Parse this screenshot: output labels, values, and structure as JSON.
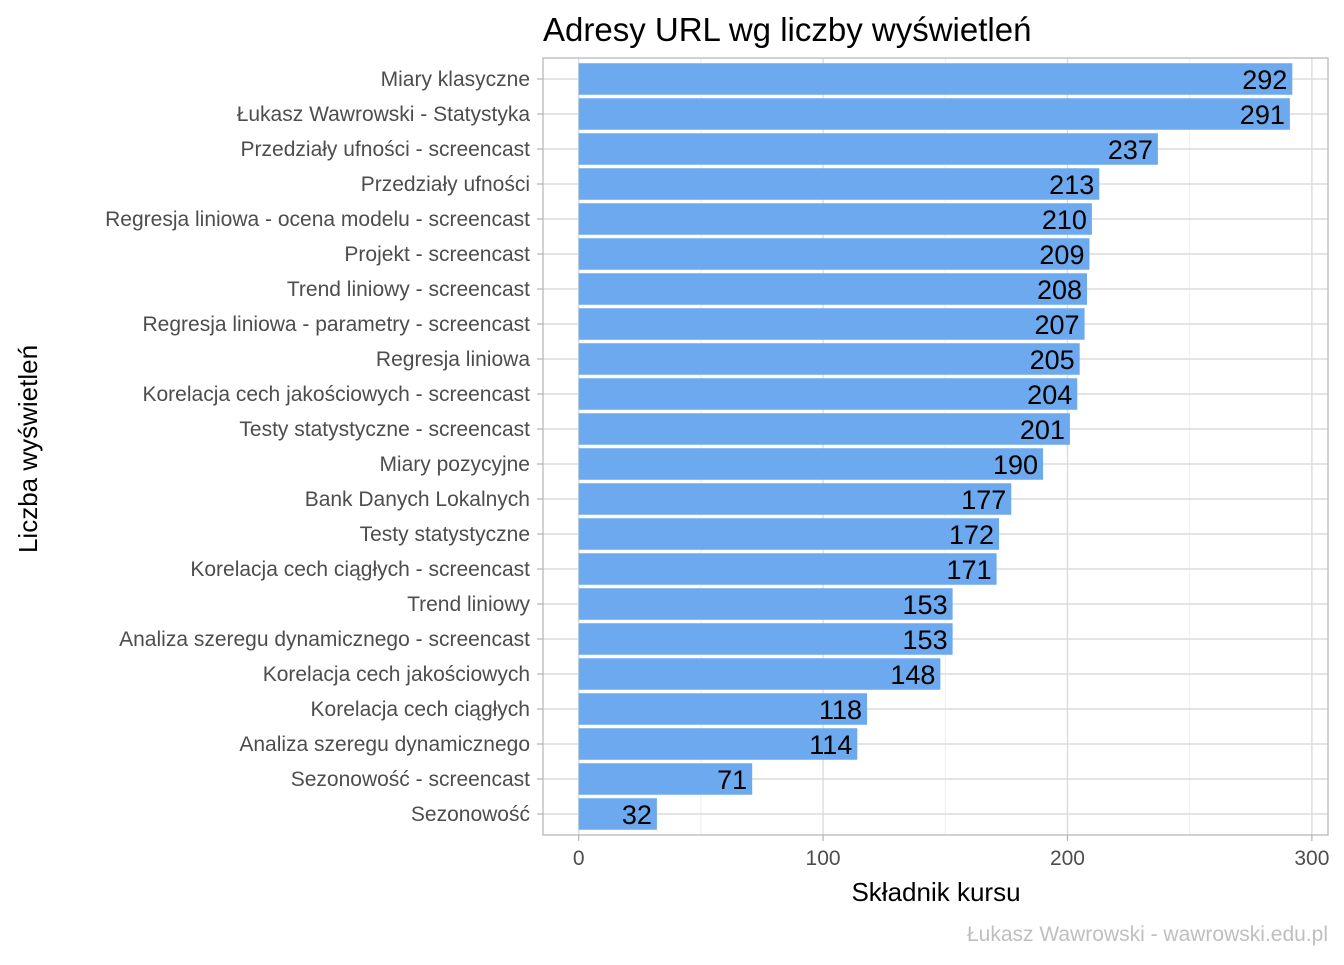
{
  "chart_data": {
    "type": "bar",
    "orientation": "horizontal",
    "title": "Adresy URL wg liczby wyświetleń",
    "xlabel": "Składnik kursu",
    "ylabel": "Liczba wyświetleń",
    "caption": "Łukasz Wawrowski - wawrowski.edu.pl",
    "categories": [
      "Miary klasyczne",
      "Łukasz Wawrowski - Statystyka",
      "Przedziały ufności - screencast",
      "Przedziały ufności",
      "Regresja liniowa - ocena modelu - screencast",
      "Projekt - screencast",
      "Trend liniowy - screencast",
      "Regresja liniowa - parametry - screencast",
      "Regresja liniowa",
      "Korelacja cech jakościowych - screencast",
      "Testy statystyczne - screencast",
      "Miary pozycyjne",
      "Bank Danych Lokalnych",
      "Testy statystyczne",
      "Korelacja cech ciągłych - screencast",
      "Trend liniowy",
      "Analiza szeregu dynamicznego - screencast",
      "Korelacja cech jakościowych",
      "Korelacja cech ciągłych",
      "Analiza szeregu dynamicznego",
      "Sezonowość - screencast",
      "Sezonowość"
    ],
    "values": [
      292,
      291,
      237,
      213,
      210,
      209,
      208,
      207,
      205,
      204,
      201,
      190,
      177,
      172,
      171,
      153,
      153,
      148,
      118,
      114,
      71,
      32
    ],
    "xlim": [
      -14.6,
      306.6
    ],
    "xticks": [
      0,
      100,
      200,
      300
    ],
    "grid": true,
    "legend": "none",
    "colors": {
      "bar": "#6ca9ee",
      "panel_border": "#b3b3b3",
      "grid_major": "#dcdcdc",
      "grid_minor": "#eeeeee",
      "tick_text": "#4d4d4d",
      "caption": "#bfbfbf",
      "title": "#000000",
      "bar_label": "#000000"
    }
  }
}
